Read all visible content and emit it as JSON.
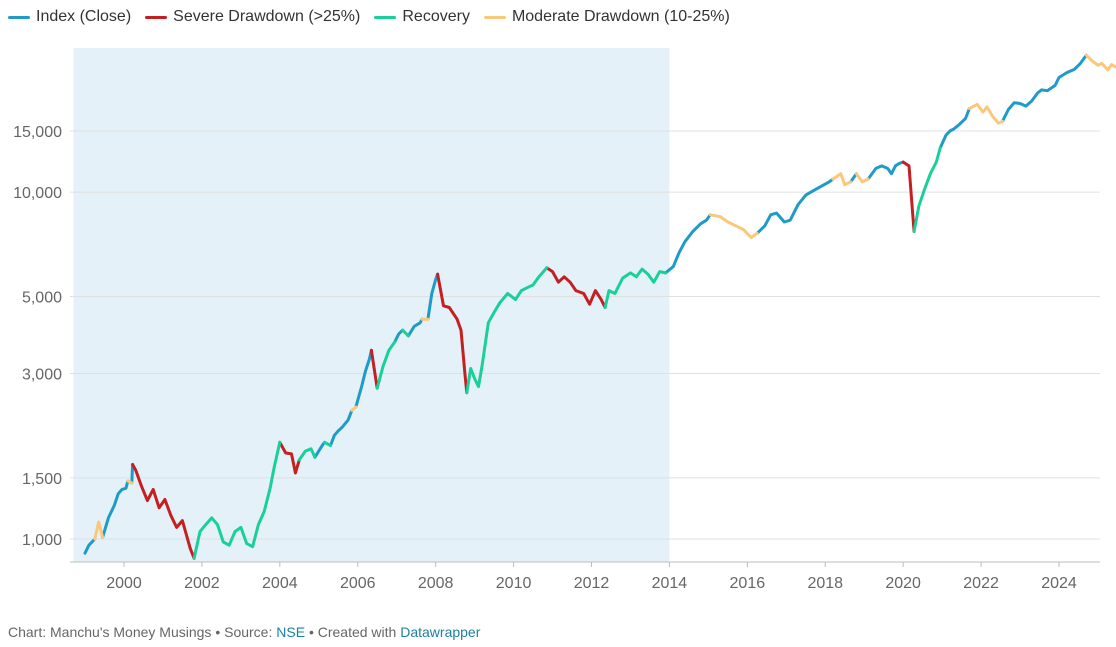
{
  "chart_data": {
    "type": "line",
    "yscale": "log",
    "ylim": [
      850,
      26000
    ],
    "xlim": [
      1998.7,
      2025.6
    ],
    "grid": true,
    "legend_position": "top-left",
    "shaded_region": {
      "x_start": 1998.7,
      "x_end": 2014.0,
      "color": "#e4f1f8"
    },
    "y_ticks": [
      {
        "value": 1000,
        "label": "1,000"
      },
      {
        "value": 1500,
        "label": "1,500"
      },
      {
        "value": 3000,
        "label": "3,000"
      },
      {
        "value": 5000,
        "label": "5,000"
      },
      {
        "value": 10000,
        "label": "10,000"
      },
      {
        "value": 15000,
        "label": "15,000"
      }
    ],
    "x_ticks": [
      {
        "value": 2000,
        "label": "2000"
      },
      {
        "value": 2002,
        "label": "2002"
      },
      {
        "value": 2004,
        "label": "2004"
      },
      {
        "value": 2006,
        "label": "2006"
      },
      {
        "value": 2008,
        "label": "2008"
      },
      {
        "value": 2010,
        "label": "2010"
      },
      {
        "value": 2012,
        "label": "2012"
      },
      {
        "value": 2014,
        "label": "2014"
      },
      {
        "value": 2016,
        "label": "2016"
      },
      {
        "value": 2018,
        "label": "2018"
      },
      {
        "value": 2020,
        "label": "2020"
      },
      {
        "value": 2022,
        "label": "2022"
      },
      {
        "value": 2024,
        "label": "2024"
      }
    ],
    "series": [
      {
        "name": "Index (Close)",
        "color": "#1f9bc7",
        "segments": [
          [
            [
              1999.0,
              910
            ],
            [
              1999.1,
              960
            ],
            [
              1999.25,
              1000
            ]
          ],
          [
            [
              1999.45,
              1010
            ],
            [
              1999.6,
              1150
            ],
            [
              1999.75,
              1250
            ],
            [
              1999.85,
              1350
            ],
            [
              1999.95,
              1390
            ],
            [
              2000.05,
              1400
            ],
            [
              2000.1,
              1470
            ]
          ],
          [
            [
              2000.2,
              1450
            ],
            [
              2000.22,
              1640
            ]
          ],
          [
            [
              2004.9,
              1720
            ],
            [
              2005.1,
              1870
            ],
            [
              2005.15,
              1900
            ]
          ],
          [
            [
              2005.3,
              1860
            ],
            [
              2005.4,
              1990
            ],
            [
              2005.5,
              2050
            ],
            [
              2005.6,
              2100
            ],
            [
              2005.75,
              2200
            ],
            [
              2005.85,
              2350
            ]
          ],
          [
            [
              2005.95,
              2400
            ],
            [
              2006.1,
              2750
            ],
            [
              2006.2,
              3050
            ],
            [
              2006.3,
              3300
            ],
            [
              2006.35,
              3500
            ]
          ],
          [
            [
              2006.95,
              3700
            ],
            [
              2007.05,
              3900
            ],
            [
              2007.15,
              4000
            ]
          ],
          [
            [
              2007.3,
              3850
            ],
            [
              2007.45,
              4100
            ],
            [
              2007.6,
              4200
            ],
            [
              2007.65,
              4300
            ]
          ],
          [
            [
              2007.8,
              4300
            ],
            [
              2007.9,
              5100
            ],
            [
              2008.0,
              5600
            ],
            [
              2008.05,
              5800
            ]
          ],
          [
            [
              2013.9,
              5850
            ],
            [
              2014.1,
              6100
            ],
            [
              2014.25,
              6700
            ],
            [
              2014.4,
              7200
            ],
            [
              2014.6,
              7700
            ],
            [
              2014.8,
              8100
            ],
            [
              2014.95,
              8300
            ],
            [
              2015.05,
              8600
            ]
          ],
          [
            [
              2016.25,
              7600
            ],
            [
              2016.45,
              8000
            ],
            [
              2016.6,
              8600
            ],
            [
              2016.75,
              8700
            ],
            [
              2016.95,
              8200
            ],
            [
              2017.1,
              8300
            ],
            [
              2017.3,
              9200
            ],
            [
              2017.5,
              9800
            ],
            [
              2017.7,
              10100
            ],
            [
              2017.9,
              10400
            ],
            [
              2018.1,
              10700
            ],
            [
              2018.2,
              10900
            ]
          ],
          [
            [
              2018.65,
              10700
            ],
            [
              2018.8,
              11300
            ]
          ],
          [
            [
              2019.1,
              10900
            ],
            [
              2019.2,
              11300
            ],
            [
              2019.3,
              11700
            ],
            [
              2019.45,
              11900
            ],
            [
              2019.6,
              11700
            ],
            [
              2019.7,
              11300
            ],
            [
              2019.8,
              11900
            ],
            [
              2019.9,
              12100
            ],
            [
              2020.0,
              12200
            ]
          ],
          [
            [
              2020.95,
              13400
            ],
            [
              2021.1,
              14600
            ],
            [
              2021.2,
              15000
            ],
            [
              2021.3,
              15200
            ],
            [
              2021.45,
              15700
            ],
            [
              2021.6,
              16300
            ],
            [
              2021.7,
              17400
            ]
          ],
          [
            [
              2022.55,
              16000
            ],
            [
              2022.7,
              17300
            ],
            [
              2022.85,
              18100
            ],
            [
              2023.0,
              18000
            ],
            [
              2023.15,
              17700
            ],
            [
              2023.3,
              18300
            ],
            [
              2023.45,
              19300
            ],
            [
              2023.55,
              19700
            ],
            [
              2023.7,
              19600
            ],
            [
              2023.9,
              20300
            ],
            [
              2024.0,
              21400
            ],
            [
              2024.2,
              22100
            ],
            [
              2024.4,
              22600
            ],
            [
              2024.55,
              23500
            ],
            [
              2024.7,
              24800
            ]
          ]
        ]
      },
      {
        "name": "Severe Drawdown (>25%)",
        "color": "#c42022",
        "segments": [
          [
            [
              2000.22,
              1640
            ],
            [
              2000.3,
              1580
            ],
            [
              2000.45,
              1420
            ],
            [
              2000.6,
              1290
            ],
            [
              2000.75,
              1390
            ],
            [
              2000.9,
              1230
            ],
            [
              2001.05,
              1300
            ],
            [
              2001.2,
              1170
            ],
            [
              2001.35,
              1080
            ],
            [
              2001.5,
              1130
            ],
            [
              2001.7,
              940
            ],
            [
              2001.8,
              880
            ]
          ],
          [
            [
              2004.0,
              1900
            ],
            [
              2004.15,
              1770
            ],
            [
              2004.3,
              1760
            ],
            [
              2004.4,
              1550
            ],
            [
              2004.5,
              1690
            ]
          ],
          [
            [
              2006.35,
              3500
            ],
            [
              2006.45,
              2950
            ],
            [
              2006.5,
              2720
            ]
          ],
          [
            [
              2008.05,
              5800
            ],
            [
              2008.2,
              4700
            ],
            [
              2008.35,
              4650
            ],
            [
              2008.55,
              4300
            ],
            [
              2008.65,
              4000
            ],
            [
              2008.75,
              3000
            ],
            [
              2008.8,
              2640
            ]
          ],
          [
            [
              2010.85,
              6050
            ],
            [
              2011.0,
              5900
            ],
            [
              2011.15,
              5500
            ],
            [
              2011.3,
              5700
            ],
            [
              2011.45,
              5500
            ],
            [
              2011.6,
              5200
            ],
            [
              2011.8,
              5100
            ],
            [
              2011.95,
              4750
            ],
            [
              2012.1,
              5200
            ],
            [
              2012.25,
              4900
            ],
            [
              2012.35,
              4650
            ]
          ],
          [
            [
              2020.0,
              12200
            ],
            [
              2020.15,
              11900
            ],
            [
              2020.25,
              8500
            ],
            [
              2020.28,
              7700
            ]
          ]
        ]
      },
      {
        "name": "Recovery",
        "color": "#1ad09a",
        "segments": [
          [
            [
              2001.8,
              880
            ],
            [
              2001.95,
              1050
            ],
            [
              2002.1,
              1100
            ],
            [
              2002.25,
              1150
            ],
            [
              2002.4,
              1100
            ],
            [
              2002.55,
              980
            ],
            [
              2002.7,
              960
            ],
            [
              2002.85,
              1050
            ],
            [
              2003.0,
              1080
            ],
            [
              2003.15,
              970
            ],
            [
              2003.3,
              950
            ],
            [
              2003.45,
              1100
            ],
            [
              2003.6,
              1200
            ],
            [
              2003.75,
              1400
            ],
            [
              2003.85,
              1600
            ],
            [
              2004.0,
              1900
            ]
          ],
          [
            [
              2004.5,
              1690
            ],
            [
              2004.65,
              1790
            ],
            [
              2004.8,
              1820
            ],
            [
              2004.9,
              1720
            ]
          ],
          [
            [
              2005.15,
              1900
            ],
            [
              2005.3,
              1860
            ]
          ],
          [
            [
              2006.5,
              2720
            ],
            [
              2006.65,
              3150
            ],
            [
              2006.8,
              3500
            ],
            [
              2006.95,
              3700
            ]
          ],
          [
            [
              2007.15,
              4000
            ],
            [
              2007.3,
              3850
            ]
          ],
          [
            [
              2008.8,
              2640
            ],
            [
              2008.9,
              3100
            ],
            [
              2009.0,
              2900
            ],
            [
              2009.1,
              2750
            ],
            [
              2009.2,
              3200
            ],
            [
              2009.35,
              4200
            ],
            [
              2009.5,
              4500
            ],
            [
              2009.65,
              4800
            ],
            [
              2009.85,
              5100
            ],
            [
              2010.05,
              4900
            ],
            [
              2010.2,
              5200
            ],
            [
              2010.35,
              5300
            ],
            [
              2010.5,
              5400
            ],
            [
              2010.65,
              5700
            ],
            [
              2010.85,
              6050
            ]
          ],
          [
            [
              2012.35,
              4650
            ],
            [
              2012.45,
              5200
            ],
            [
              2012.6,
              5100
            ],
            [
              2012.8,
              5650
            ],
            [
              2013.0,
              5850
            ],
            [
              2013.15,
              5700
            ],
            [
              2013.3,
              6000
            ],
            [
              2013.45,
              5800
            ],
            [
              2013.6,
              5500
            ],
            [
              2013.75,
              5900
            ],
            [
              2013.9,
              5850
            ]
          ],
          [
            [
              2020.28,
              7700
            ],
            [
              2020.4,
              9100
            ],
            [
              2020.55,
              10200
            ],
            [
              2020.7,
              11300
            ],
            [
              2020.85,
              12200
            ],
            [
              2020.95,
              13400
            ]
          ]
        ]
      },
      {
        "name": "Moderate Drawdown (10-25%)",
        "color": "#fbc77b",
        "segments": [
          [
            [
              1999.25,
              1000
            ],
            [
              1999.35,
              1120
            ],
            [
              1999.45,
              1010
            ]
          ],
          [
            [
              2000.1,
              1470
            ],
            [
              2000.2,
              1450
            ]
          ],
          [
            [
              2005.85,
              2350
            ],
            [
              2005.95,
              2400
            ]
          ],
          [
            [
              2007.65,
              4300
            ],
            [
              2007.8,
              4300
            ]
          ],
          [
            [
              2015.05,
              8600
            ],
            [
              2015.3,
              8500
            ],
            [
              2015.5,
              8200
            ],
            [
              2015.7,
              8000
            ],
            [
              2015.9,
              7800
            ],
            [
              2016.1,
              7400
            ],
            [
              2016.25,
              7600
            ]
          ],
          [
            [
              2018.2,
              10900
            ],
            [
              2018.4,
              11300
            ],
            [
              2018.5,
              10500
            ],
            [
              2018.65,
              10700
            ]
          ],
          [
            [
              2018.8,
              11300
            ],
            [
              2018.95,
              10700
            ],
            [
              2019.1,
              10900
            ]
          ],
          [
            [
              2021.7,
              17400
            ],
            [
              2021.9,
              17900
            ],
            [
              2022.05,
              17000
            ],
            [
              2022.15,
              17600
            ],
            [
              2022.3,
              16500
            ],
            [
              2022.45,
              15800
            ],
            [
              2022.55,
              16000
            ]
          ],
          [
            [
              2024.7,
              24800
            ],
            [
              2024.85,
              23900
            ],
            [
              2025.0,
              23200
            ],
            [
              2025.1,
              23500
            ],
            [
              2025.25,
              22500
            ],
            [
              2025.35,
              23300
            ],
            [
              2025.5,
              22800
            ]
          ]
        ]
      }
    ]
  },
  "legend": {
    "items": [
      {
        "label": "Index (Close)",
        "color": "#1f9bc7"
      },
      {
        "label": "Severe Drawdown (>25%)",
        "color": "#c42022"
      },
      {
        "label": "Recovery",
        "color": "#1ad09a"
      },
      {
        "label": "Moderate Drawdown (10-25%)",
        "color": "#fbc77b"
      }
    ]
  },
  "footer": {
    "chart_prefix": "Chart: Manchu's Money Musings • Source:",
    "source_link": "NSE",
    "created_with": "• Created with",
    "tool_link": "Datawrapper"
  }
}
